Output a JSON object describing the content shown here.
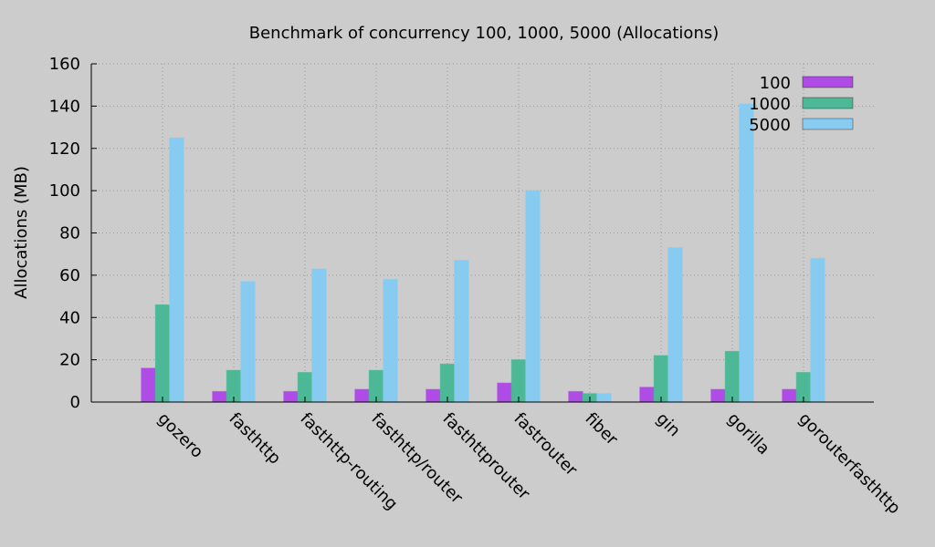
{
  "chart_data": {
    "type": "bar",
    "title": "Benchmark of concurrency 100, 1000, 5000 (Allocations)",
    "xlabel": "",
    "ylabel": "Allocations (MB)",
    "ylim": [
      0,
      160
    ],
    "yticks": [
      0,
      20,
      40,
      60,
      80,
      100,
      120,
      140,
      160
    ],
    "grid": true,
    "legend_position": "top-right",
    "categories": [
      "gozero",
      "fasthttp",
      "fasthttp-routing",
      "fasthttp/router",
      "fasthttprouter",
      "fastrouter",
      "fiber",
      "gin",
      "gorilla",
      "gorouterfasthttp"
    ],
    "series": [
      {
        "name": "100",
        "color": "#b04ce6",
        "values": [
          16,
          5,
          5,
          6,
          6,
          9,
          5,
          7,
          6,
          6
        ]
      },
      {
        "name": "1000",
        "color": "#4db896",
        "values": [
          46,
          15,
          14,
          15,
          18,
          20,
          4,
          22,
          24,
          14
        ]
      },
      {
        "name": "5000",
        "color": "#87ccf0",
        "values": [
          125,
          57,
          63,
          58,
          67,
          100,
          4,
          73,
          141,
          68
        ]
      }
    ]
  }
}
